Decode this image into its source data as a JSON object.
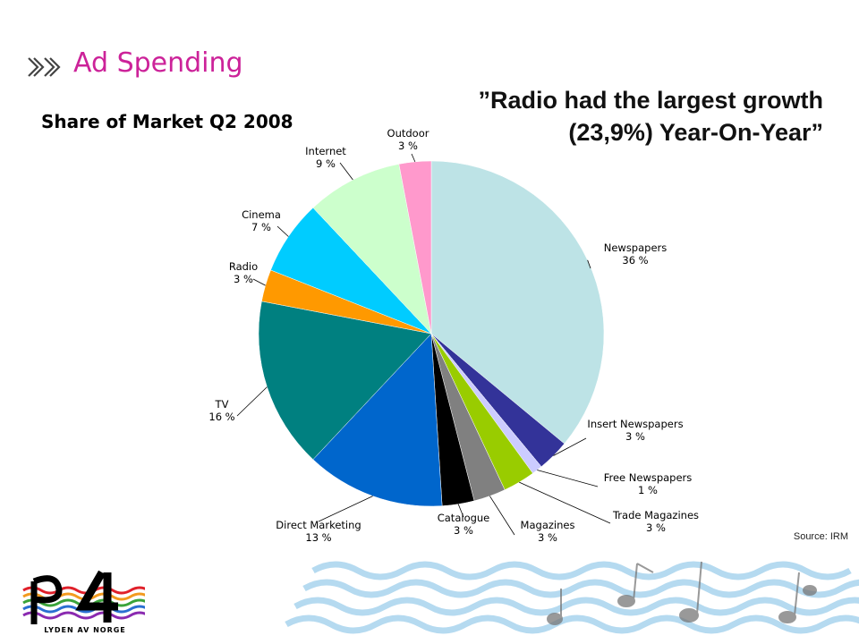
{
  "header": {
    "section_title": "Ad Spending",
    "chart_title": "Share of Market Q2 2008",
    "quote": "”Radio had the largest growth (23,9%) Year-On-Year”",
    "source": "Source: IRM"
  },
  "logo": {
    "tagline": "LYDEN AV NORGE"
  },
  "colors": {
    "accent": "#cc2299"
  },
  "chart_data": {
    "type": "pie",
    "title": "Share of Market Q2 2008",
    "unit": "%",
    "slices": [
      {
        "label": "Newspapers",
        "value": 36,
        "value_label": "36 %",
        "color": "#bde3e6"
      },
      {
        "label": "Insert Newspapers",
        "value": 3,
        "value_label": "3 %",
        "color": "#333399"
      },
      {
        "label": "Free Newspapers",
        "value": 1,
        "value_label": "1 %",
        "color": "#ccccff"
      },
      {
        "label": "Trade Magazines",
        "value": 3,
        "value_label": "3 %",
        "color": "#99cc00"
      },
      {
        "label": "Magazines",
        "value": 3,
        "value_label": "3 %",
        "color": "#808080"
      },
      {
        "label": "Catalogue",
        "value": 3,
        "value_label": "3 %",
        "color": "#000000"
      },
      {
        "label": "Direct Marketing",
        "value": 13,
        "value_label": "13 %",
        "color": "#0066cc"
      },
      {
        "label": "TV",
        "value": 16,
        "value_label": "16 %",
        "color": "#008080"
      },
      {
        "label": "Radio",
        "value": 3,
        "value_label": "3 %",
        "color": "#ff9900"
      },
      {
        "label": "Cinema",
        "value": 7,
        "value_label": "7 %",
        "color": "#00ccff"
      },
      {
        "label": "Internet",
        "value": 9,
        "value_label": "9 %",
        "color": "#ccffcc"
      },
      {
        "label": "Outdoor",
        "value": 3,
        "value_label": "3 %",
        "color": "#ff99cc"
      }
    ],
    "legend": "none",
    "labels": "outside with leader lines"
  }
}
